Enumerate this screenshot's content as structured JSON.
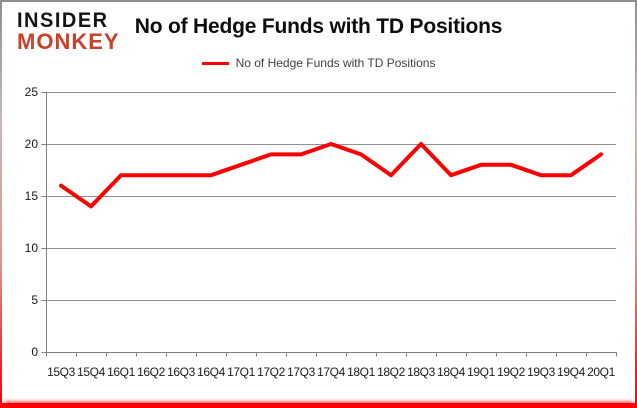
{
  "logo": {
    "line1": "INSIDER",
    "line2": "MONKEY"
  },
  "title": "No of Hedge Funds with TD Positions",
  "legend": {
    "label": "No of Hedge Funds with TD Positions"
  },
  "colors": {
    "line": "#ff0000",
    "grid": "#909090",
    "axis": "#808080",
    "axis_text": "#1a1a1a",
    "legend_text": "#3f3f3f",
    "logo_black": "#141414",
    "logo_red": "#c9412a",
    "border_top": "#8f8f8f",
    "border_bottom": "#ff0000"
  },
  "chart_data": {
    "type": "line",
    "title": "No of Hedge Funds with TD Positions",
    "categories": [
      "15Q3",
      "15Q4",
      "16Q1",
      "16Q2",
      "16Q3",
      "16Q4",
      "17Q1",
      "17Q2",
      "17Q3",
      "17Q4",
      "18Q1",
      "18Q2",
      "18Q3",
      "18Q4",
      "19Q1",
      "19Q2",
      "19Q3",
      "19Q4",
      "20Q1"
    ],
    "series": [
      {
        "name": "No of Hedge Funds with TD Positions",
        "color": "#ff0000",
        "values": [
          16,
          14,
          17,
          17,
          17,
          17,
          18,
          19,
          19,
          20,
          19,
          17,
          20,
          17,
          18,
          18,
          17,
          17,
          19
        ]
      }
    ],
    "xlabel": "",
    "ylabel": "",
    "ylim": [
      0,
      25
    ],
    "yticks": [
      0,
      5,
      10,
      15,
      20,
      25
    ],
    "grid": true,
    "legend_position": "top-center"
  }
}
